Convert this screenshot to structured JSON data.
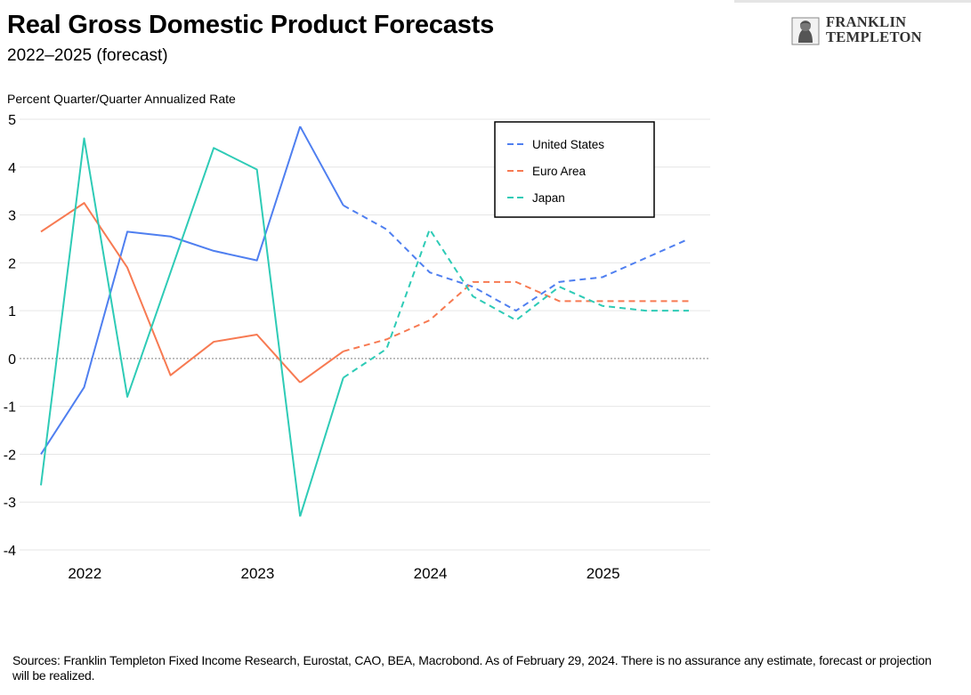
{
  "header": {
    "title": "Real Gross Domestic Product Forecasts",
    "subtitle": "2022–2025 (forecast)"
  },
  "logo": {
    "line1": "FRANKLIN",
    "line2": "TEMPLETON",
    "icon": "franklin-portrait-icon"
  },
  "footer": {
    "source": "Sources: Franklin Templeton Fixed Income Research, Eurostat, CAO, BEA, Macrobond. As of February 29, 2024. There is no assurance any estimate, forecast or projection will be realized."
  },
  "colors": {
    "united_states": "#4F7FF0",
    "euro_area": "#F77A52",
    "japan": "#2ECBB6",
    "grid": "#e6e6e6",
    "zero_line": "#999999"
  },
  "chart_data": {
    "type": "line",
    "title": "Real Gross Domestic Product Forecasts",
    "ylabel": "Percent Quarter/Quarter Annualized Rate",
    "xlabel": "",
    "ylim": [
      -4,
      5
    ],
    "yticks": [
      5,
      4,
      3,
      2,
      1,
      0,
      -1,
      -2,
      -3,
      -4
    ],
    "ytick_labels": [
      "5",
      "4",
      "3",
      "2",
      "1",
      "0",
      "-1",
      "-2",
      "-3",
      "-4"
    ],
    "xlim": [
      2022.0,
      2026.0
    ],
    "xtick_labels": [
      {
        "label": "2022",
        "x": 2022.5
      },
      {
        "label": "2023",
        "x": 2023.5
      },
      {
        "label": "2024",
        "x": 2024.5
      },
      {
        "label": "2025",
        "x": 2025.5
      }
    ],
    "x": [
      2022.0,
      2022.25,
      2022.5,
      2022.75,
      2023.0,
      2023.25,
      2023.5,
      2023.75,
      2024.0,
      2024.25,
      2024.5,
      2024.75,
      2025.0,
      2025.25,
      2025.5,
      2025.75
    ],
    "forecast_start_index": 7,
    "grid": true,
    "zero_line": "dotted",
    "legend_position": "top-right",
    "series": [
      {
        "name": "United States",
        "key": "united_states",
        "values": [
          -2.0,
          -0.6,
          2.65,
          2.55,
          2.25,
          2.05,
          4.85,
          3.2,
          2.7,
          1.8,
          1.5,
          1.0,
          1.6,
          1.7,
          2.1,
          2.5
        ]
      },
      {
        "name": "Euro Area",
        "key": "euro_area",
        "values": [
          2.65,
          3.25,
          1.9,
          -0.35,
          0.35,
          0.5,
          -0.5,
          0.15,
          0.4,
          0.8,
          1.6,
          1.6,
          1.2,
          1.2,
          1.2,
          1.2
        ]
      },
      {
        "name": "Japan",
        "key": "japan",
        "values": [
          -2.65,
          4.6,
          -0.8,
          1.8,
          4.4,
          3.95,
          -3.3,
          -0.4,
          0.2,
          2.7,
          1.3,
          0.8,
          1.5,
          1.1,
          1.0,
          1.0
        ]
      }
    ]
  }
}
